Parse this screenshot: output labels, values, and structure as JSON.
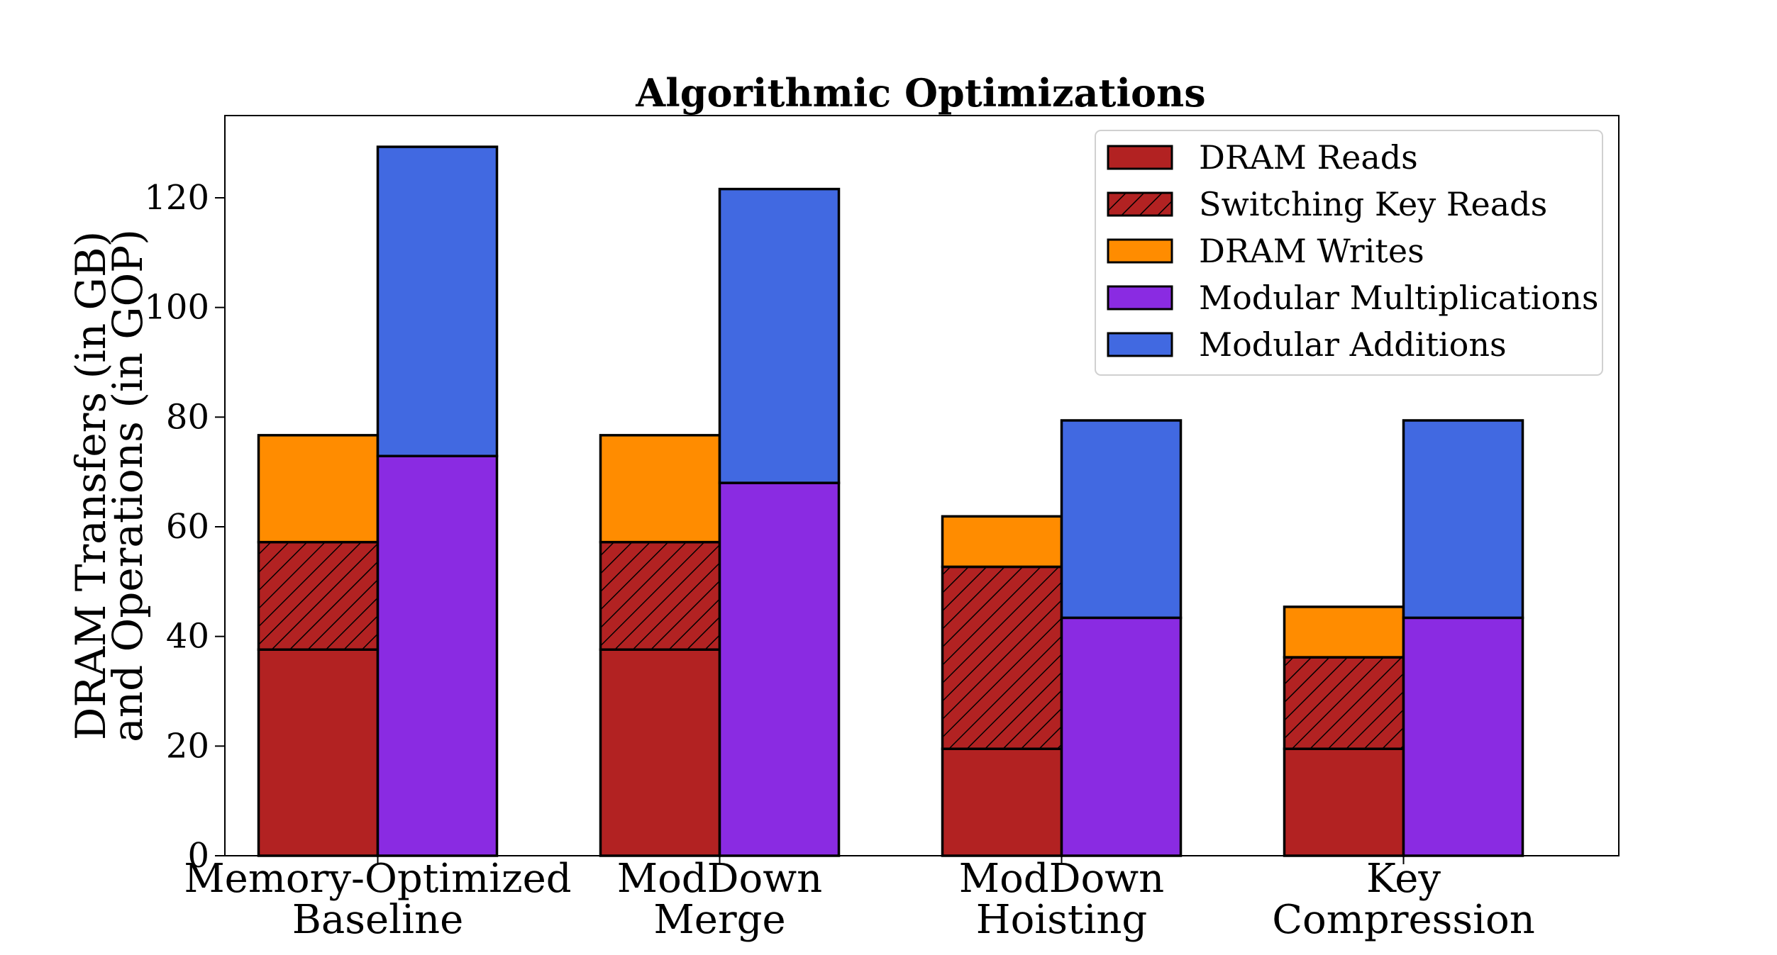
{
  "chart_data": {
    "type": "bar",
    "title": "Algorithmic Optimizations",
    "ylabel_lines": [
      "DRAM Transfers (in GB)",
      "and Operations (in GOP)"
    ],
    "xlabel": "",
    "ylim": [
      0,
      135
    ],
    "yticks": [
      0,
      20,
      40,
      60,
      80,
      100,
      120
    ],
    "categories": [
      [
        "Memory-Optimized",
        "Baseline"
      ],
      [
        "ModDown",
        "Merge"
      ],
      [
        "ModDown",
        "Hoisting"
      ],
      [
        "Key",
        "Compression"
      ]
    ],
    "grid": false,
    "legend_position": "top-right",
    "stacks": [
      {
        "stack": "DRAM transfers",
        "series": [
          {
            "name": "DRAM Reads",
            "color": "#b22222",
            "hatch": false,
            "values": [
              37.6,
              37.6,
              19.5,
              19.5
            ]
          },
          {
            "name": "Switching Key Reads",
            "color": "#b22222",
            "hatch": true,
            "values": [
              19.6,
              19.6,
              33.2,
              16.7
            ]
          },
          {
            "name": "DRAM Writes",
            "color": "#ff8c00",
            "hatch": false,
            "values": [
              19.5,
              19.5,
              9.2,
              9.2
            ]
          }
        ]
      },
      {
        "stack": "Operations",
        "series": [
          {
            "name": "Modular Multiplications",
            "color": "#8a2be2",
            "hatch": false,
            "values": [
              72.9,
              68.0,
              43.4,
              43.4
            ]
          },
          {
            "name": "Modular Additions",
            "color": "#4169e1",
            "hatch": false,
            "values": [
              56.4,
              53.6,
              36.0,
              36.0
            ]
          }
        ]
      }
    ]
  }
}
